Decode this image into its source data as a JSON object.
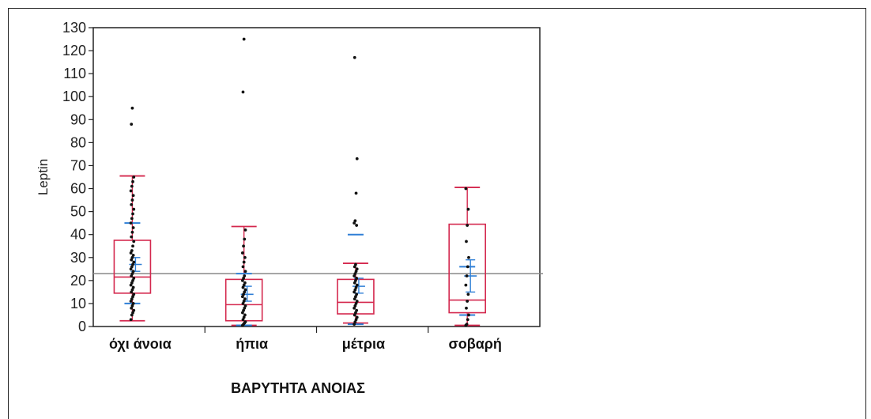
{
  "chart_data": {
    "type": "boxplot",
    "title": "",
    "xlabel": "ΒΑΡΥΤΗΤΑ ΑΝΟΙΑΣ",
    "ylabel": "Leptin",
    "ylim": [
      0,
      130
    ],
    "yticks": [
      0,
      10,
      20,
      30,
      40,
      50,
      60,
      70,
      80,
      90,
      100,
      110,
      120,
      130
    ],
    "reference_line": 23,
    "categories": [
      "όχι άνοια",
      "ήπια",
      "μέτρια",
      "σοβαρή"
    ],
    "boxes": [
      {
        "whisker_low": 2.5,
        "q1": 14.5,
        "median": 21.5,
        "q3": 37.5,
        "whisker_high": 65.5,
        "mean": 27,
        "ci_low": 24,
        "ci_high": 30,
        "sd_low": 10,
        "sd_high": 45,
        "points": [
          3,
          5,
          6,
          7,
          8,
          9,
          10,
          11,
          12,
          13,
          14,
          15,
          16,
          17,
          18,
          19,
          20,
          21,
          22,
          23,
          24,
          25,
          26,
          27,
          28,
          29,
          30,
          31,
          32,
          33,
          35,
          37,
          39,
          41,
          43,
          45,
          47,
          49,
          51,
          53,
          55,
          57,
          59,
          61,
          63,
          65,
          88,
          95
        ]
      },
      {
        "whisker_low": 0.5,
        "q1": 2.5,
        "median": 9.5,
        "q3": 20.5,
        "whisker_high": 43.5,
        "mean": 14,
        "ci_low": 11,
        "ci_high": 17.5,
        "sd_low": 0.5,
        "sd_high": 23,
        "points": [
          0.5,
          1,
          1.5,
          2,
          3,
          4,
          5,
          6,
          7,
          8,
          9,
          10,
          11,
          12,
          13,
          14,
          15,
          16,
          17,
          18,
          19,
          20,
          21,
          22,
          24,
          26,
          28,
          30,
          32,
          35,
          38,
          42,
          102,
          125
        ]
      },
      {
        "whisker_low": 1.5,
        "q1": 5.5,
        "median": 10.5,
        "q3": 20.5,
        "whisker_high": 27.5,
        "mean": 17.5,
        "ci_low": 14.5,
        "ci_high": 21,
        "sd_low": 1,
        "sd_high": 40,
        "points": [
          1,
          2,
          3,
          4,
          5,
          6,
          7,
          8,
          9,
          10,
          11,
          12,
          13,
          14,
          15,
          16,
          17,
          18,
          19,
          20,
          21,
          22,
          23,
          24,
          25,
          26,
          27,
          44,
          45,
          46,
          58,
          73,
          117
        ]
      },
      {
        "whisker_low": 0.5,
        "q1": 6,
        "median": 11.5,
        "q3": 44.5,
        "whisker_high": 60.5,
        "mean": 22,
        "ci_low": 15,
        "ci_high": 29,
        "sd_low": 5,
        "sd_high": 26,
        "points": [
          0.5,
          1,
          3,
          5,
          8,
          11,
          14,
          18,
          22,
          26,
          30,
          37,
          44,
          51,
          60
        ]
      }
    ]
  }
}
